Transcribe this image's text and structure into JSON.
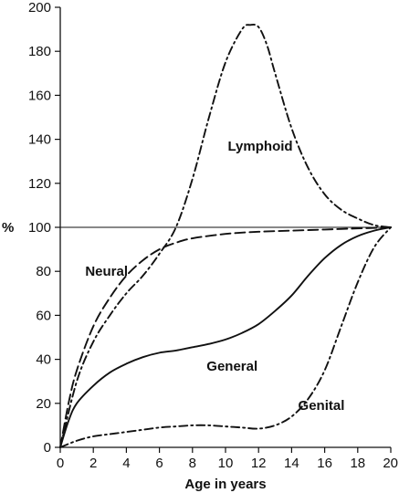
{
  "chart_data": {
    "type": "line",
    "title": "",
    "xlabel": "Age in years",
    "ylabel": "%",
    "xlim": [
      0,
      20
    ],
    "ylim": [
      0,
      200
    ],
    "x_ticks": [
      0,
      2,
      4,
      6,
      8,
      10,
      12,
      14,
      16,
      18,
      20
    ],
    "y_ticks": [
      0,
      20,
      40,
      60,
      80,
      100,
      120,
      140,
      160,
      180,
      200
    ],
    "grid": false,
    "legend": "none",
    "reference_line": {
      "y": 100
    },
    "series": [
      {
        "name": "Lymphoid",
        "style": "dash-dot",
        "x": [
          0,
          1,
          2,
          3,
          4,
          5,
          6,
          7,
          8,
          9,
          10,
          11,
          11.5,
          12,
          12.5,
          13,
          14,
          15,
          16,
          17,
          18,
          19,
          20
        ],
        "y": [
          0,
          30,
          48,
          60,
          70,
          78,
          88,
          100,
          122,
          150,
          175,
          190,
          192,
          191,
          183,
          170,
          145,
          127,
          115,
          108,
          104,
          101,
          100
        ]
      },
      {
        "name": "Neural",
        "style": "dashed",
        "x": [
          0,
          0.5,
          1,
          2,
          3,
          4,
          5,
          6,
          7,
          8,
          10,
          12,
          14,
          16,
          18,
          20
        ],
        "y": [
          0,
          20,
          35,
          55,
          68,
          78,
          85,
          90,
          93,
          95,
          97,
          98,
          98.5,
          99,
          99.5,
          100
        ]
      },
      {
        "name": "General",
        "style": "solid",
        "x": [
          0,
          0.5,
          1,
          2,
          3,
          4,
          5,
          6,
          7,
          8,
          9,
          10,
          11,
          12,
          13,
          14,
          15,
          16,
          17,
          18,
          19,
          20
        ],
        "y": [
          0,
          12,
          20,
          28,
          34,
          38,
          41,
          43,
          44,
          45.5,
          47,
          49,
          52,
          56,
          62,
          69,
          78,
          86,
          92,
          96,
          98.5,
          100
        ]
      },
      {
        "name": "Genital",
        "style": "dash-dot",
        "x": [
          0,
          1,
          2,
          3,
          4,
          5,
          6,
          7,
          8,
          9,
          10,
          11,
          12,
          13,
          14,
          15,
          16,
          17,
          18,
          19,
          20
        ],
        "y": [
          0,
          3,
          5,
          6,
          7,
          8,
          9,
          9.5,
          10,
          10,
          9.5,
          9,
          8.5,
          10,
          14,
          22,
          35,
          55,
          75,
          91,
          100
        ]
      }
    ],
    "annotations": [
      {
        "text": "Lymphoid",
        "x": 12.1,
        "y": 137
      },
      {
        "text": "Neural",
        "x": 2.8,
        "y": 80
      },
      {
        "text": "General",
        "x": 10.4,
        "y": 37
      },
      {
        "text": "Genital",
        "x": 15.8,
        "y": 19
      }
    ]
  }
}
